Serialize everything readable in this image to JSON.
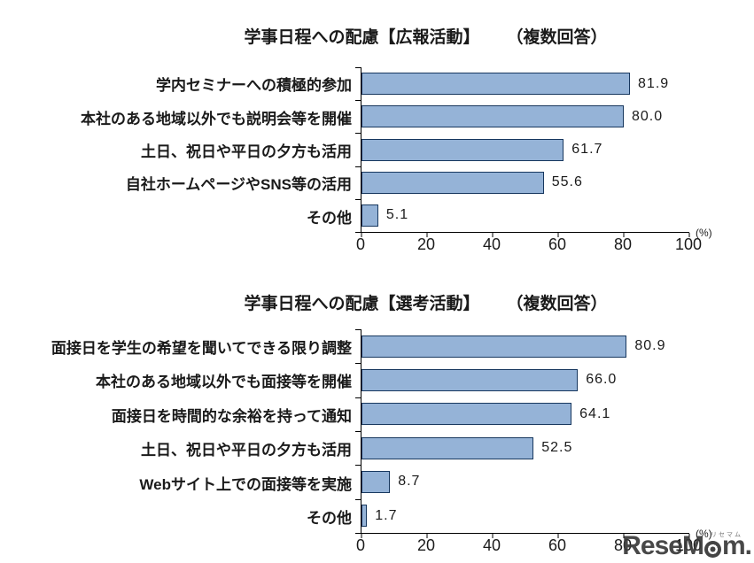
{
  "page": {
    "background": "#ffffff"
  },
  "axis": {
    "ticks": [
      "0",
      "20",
      "40",
      "60",
      "80",
      "100"
    ],
    "unit_label": "(%)"
  },
  "watermark": {
    "brand_prefix": "Rese",
    "brand_m": "M",
    "brand_suffix": "m.",
    "jp_label": "リセマム"
  },
  "chart_data": [
    {
      "type": "bar",
      "orientation": "horizontal",
      "title": "学事日程への配慮【広報活動】",
      "annotation": "（複数回答）",
      "categories": [
        "学内セミナーへの積極的参加",
        "本社のある地域以外でも説明会等を開催",
        "土日、祝日や平日の夕方も活用",
        "自社ホームページやSNS等の活用",
        "その他"
      ],
      "values": [
        81.9,
        80.0,
        61.7,
        55.6,
        5.1
      ],
      "value_labels": [
        "81.9",
        "80.0",
        "61.7",
        "55.6",
        "5.1"
      ],
      "xlim": [
        0,
        100
      ],
      "x_ticks": [
        0,
        20,
        40,
        60,
        80,
        100
      ],
      "unit": "(%)",
      "grid": false,
      "legend": "none",
      "bar_fill": "#95B3D7",
      "bar_border": "#17375E"
    },
    {
      "type": "bar",
      "orientation": "horizontal",
      "title": "学事日程への配慮【選考活動】",
      "annotation": "（複数回答）",
      "categories": [
        "面接日を学生の希望を聞いてできる限り調整",
        "本社のある地域以外でも面接等を開催",
        "面接日を時間的な余裕を持って通知",
        "土日、祝日や平日の夕方も活用",
        "Webサイト上での面接等を実施",
        "その他"
      ],
      "values": [
        80.9,
        66.0,
        64.1,
        52.5,
        8.7,
        1.7
      ],
      "value_labels": [
        "80.9",
        "66.0",
        "64.1",
        "52.5",
        "8.7",
        "1.7"
      ],
      "xlim": [
        0,
        100
      ],
      "x_ticks": [
        0,
        20,
        40,
        60,
        80,
        100
      ],
      "unit": "(%)",
      "grid": false,
      "legend": "none",
      "bar_fill": "#95B3D7",
      "bar_border": "#17375E"
    }
  ]
}
